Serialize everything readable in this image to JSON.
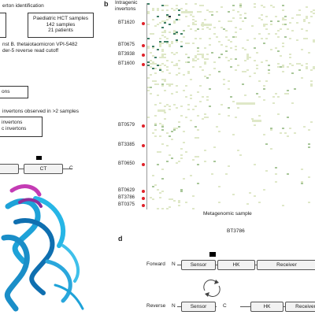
{
  "panel_a": {
    "line1": "erton identification",
    "box_right_lines": [
      "Paediatric HCT samples",
      "142 samples",
      "21 patients"
    ],
    "note1": "nst B. thetaiotaomicron VPI-5482",
    "note2": "der-5 reverse read cutoff",
    "box_mid_label": "ons",
    "note3": "invertons observed in >2 samples",
    "box_bottom_lines": [
      "invertons",
      "c invertons"
    ]
  },
  "panel_b": {
    "letter": "b",
    "top_label_lines": [
      "Intragenic",
      "invertons"
    ],
    "genes": [
      "BT1620",
      "BT0675",
      "BT3938",
      "BT1600",
      "BT0579",
      "BT3385",
      "BT0650",
      "BT0629",
      "BT3786",
      "BT0375"
    ],
    "xlabel": "Metagenomic sample",
    "caption": "BT3786"
  },
  "panel_c": {
    "domain_left": "",
    "domain_ct": "CT",
    "terminus": "C"
  },
  "panel_d": {
    "letter": "d",
    "forward_label": "Forward",
    "reverse_label": "Reverse",
    "n_label": "N",
    "c_label": "C",
    "forward_domains": [
      "Sensor",
      "HK",
      "Receiver"
    ],
    "reverse_domains": [
      "Sensor",
      "HK",
      "Receiver"
    ]
  },
  "colors": {
    "heat_light": "#dfe8c8",
    "heat_mid": "#a9c79a",
    "heat_dark": "#3f7f66",
    "heat_darkest": "#1a2a3a",
    "marker": "#e0222a",
    "protein_main": "#1ea2d8",
    "protein_accent": "#c43bb4"
  }
}
